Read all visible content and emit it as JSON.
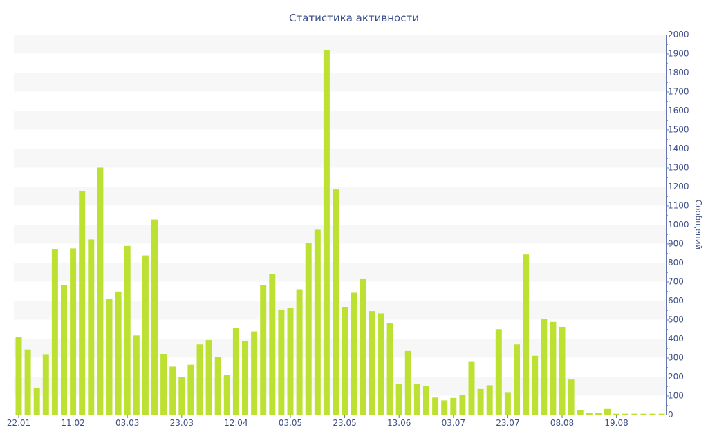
{
  "chart_data": {
    "type": "bar",
    "title": "Статистика активности",
    "xlabel": "",
    "ylabel": "Сообщений",
    "ylim": [
      0,
      2000
    ],
    "y_ticks": [
      0,
      100,
      200,
      300,
      400,
      500,
      600,
      700,
      800,
      900,
      1000,
      1100,
      1200,
      1300,
      1400,
      1500,
      1600,
      1700,
      1800,
      1900,
      2000
    ],
    "y_axis_side": "right",
    "grid": "alternating-bands",
    "x_tick_labels": [
      {
        "label": "22.01",
        "index": 0
      },
      {
        "label": "11.02",
        "index": 6
      },
      {
        "label": "03.03",
        "index": 12
      },
      {
        "label": "23.03",
        "index": 18
      },
      {
        "label": "12.04",
        "index": 24
      },
      {
        "label": "03.05",
        "index": 30
      },
      {
        "label": "23.05",
        "index": 36
      },
      {
        "label": "13.06",
        "index": 42
      },
      {
        "label": "03.07",
        "index": 48
      },
      {
        "label": "23.07",
        "index": 54
      },
      {
        "label": "08.08",
        "index": 60
      },
      {
        "label": "19.08",
        "index": 66
      }
    ],
    "values": [
      410,
      343,
      140,
      315,
      872,
      683,
      875,
      1177,
      922,
      1300,
      608,
      648,
      888,
      417,
      838,
      1027,
      320,
      253,
      198,
      263,
      370,
      393,
      302,
      210,
      458,
      386,
      438,
      680,
      740,
      553,
      560,
      660,
      902,
      973,
      1917,
      1185,
      565,
      642,
      713,
      545,
      533,
      480,
      160,
      335,
      163,
      152,
      90,
      75,
      88,
      102,
      278,
      135,
      155,
      450,
      115,
      370,
      843,
      310,
      503,
      488,
      462,
      185,
      25,
      10,
      10,
      30,
      5,
      5,
      5,
      5,
      5,
      5
    ],
    "colors": {
      "bar": "#bde133",
      "text": "#3d4f8a",
      "axis": "#6677aa",
      "band": "#f7f7f7"
    }
  }
}
